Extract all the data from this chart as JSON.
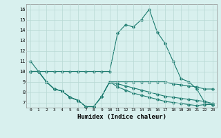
{
  "line1_x": [
    0,
    1,
    2,
    3,
    4,
    5,
    6,
    7,
    8,
    9,
    10,
    11,
    12,
    13,
    14,
    15,
    16,
    17,
    18,
    19,
    20,
    21,
    22,
    23
  ],
  "line1_y": [
    11,
    10,
    10,
    10,
    10,
    10,
    10,
    10,
    10,
    10,
    10,
    13.7,
    14.5,
    14.3,
    15,
    16,
    13.8,
    12.7,
    11,
    9.3,
    9.0,
    8.3,
    7.0,
    6.8
  ],
  "line2_x": [
    0,
    1,
    2,
    3,
    4,
    5,
    6,
    7,
    8,
    9,
    10,
    11,
    12,
    13,
    14,
    15,
    16,
    17,
    18,
    19,
    20,
    21,
    22,
    23
  ],
  "line2_y": [
    10,
    10,
    9,
    8.3,
    8.1,
    7.5,
    7.2,
    6.6,
    6.6,
    7.6,
    9,
    9,
    9,
    9,
    9,
    9,
    9,
    9,
    8.8,
    8.7,
    8.6,
    8.5,
    8.3,
    8.3
  ],
  "line3_x": [
    0,
    1,
    2,
    3,
    4,
    5,
    6,
    7,
    8,
    9,
    10,
    11,
    12,
    13,
    14,
    15,
    16,
    17,
    18,
    19,
    20,
    21,
    22,
    23
  ],
  "line3_y": [
    10,
    10,
    9,
    8.3,
    8.1,
    7.5,
    7.2,
    6.6,
    6.6,
    7.6,
    9,
    8.8,
    8.6,
    8.4,
    8.2,
    8.0,
    7.8,
    7.6,
    7.5,
    7.4,
    7.3,
    7.2,
    7.1,
    6.9
  ],
  "line4_x": [
    0,
    1,
    2,
    3,
    4,
    5,
    6,
    7,
    8,
    9,
    10,
    11,
    12,
    13,
    14,
    15,
    16,
    17,
    18,
    19,
    20,
    21,
    22,
    23
  ],
  "line4_y": [
    10,
    10,
    9,
    8.3,
    8.1,
    7.5,
    7.2,
    6.6,
    6.6,
    7.6,
    9,
    8.5,
    8.2,
    7.9,
    7.7,
    7.5,
    7.3,
    7.1,
    7.0,
    6.9,
    6.8,
    6.7,
    6.8,
    6.8
  ],
  "line_color": "#1a7a6e",
  "bg_color": "#d8f0ee",
  "grid_color": "#b8d8d4",
  "xlabel": "Humidex (Indice chaleur)",
  "ylim": [
    6.5,
    16.5
  ],
  "xlim": [
    -0.5,
    23.5
  ],
  "yticks": [
    7,
    8,
    9,
    10,
    11,
    12,
    13,
    14,
    15,
    16
  ],
  "xticks": [
    0,
    1,
    2,
    3,
    4,
    5,
    6,
    7,
    8,
    9,
    10,
    11,
    12,
    13,
    14,
    15,
    16,
    17,
    18,
    19,
    20,
    21,
    22,
    23
  ]
}
